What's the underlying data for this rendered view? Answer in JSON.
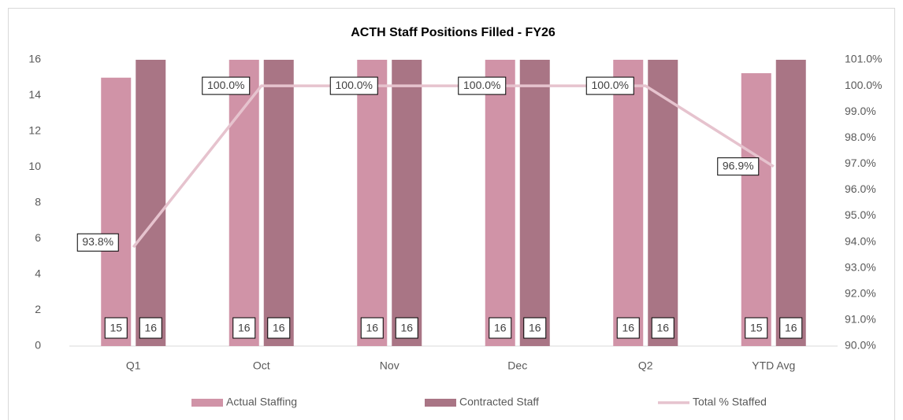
{
  "chart_data": {
    "type": "bar",
    "title": "ACTH Staff Positions Filled - FY26",
    "categories": [
      "Q1",
      "Oct",
      "Nov",
      "Dec",
      "Q2",
      "YTD Avg"
    ],
    "series": [
      {
        "name": "Actual Staffing",
        "type": "bar",
        "color": "#d093a7",
        "values": [
          15,
          16,
          16,
          16,
          16,
          15.25
        ],
        "value_labels": [
          "15",
          "16",
          "16",
          "16",
          "16",
          "15"
        ]
      },
      {
        "name": "Contracted Staff",
        "type": "bar",
        "color": "#a97585",
        "values": [
          16,
          16,
          16,
          16,
          16,
          16
        ]
      },
      {
        "name": "Total % Staffed",
        "type": "line",
        "axis": "y2",
        "color": "#e6c3ce",
        "values": [
          93.8,
          100,
          100,
          100,
          100,
          96.9
        ],
        "value_labels": [
          "93.8%",
          "100.0%",
          "100.0%",
          "100.0%",
          "100.0%",
          "96.9%"
        ]
      }
    ],
    "ylim": [
      0,
      16
    ],
    "yticks": [
      0,
      2,
      4,
      6,
      8,
      10,
      12,
      14,
      16
    ],
    "y2lim": [
      90,
      101
    ],
    "y2ticks": [
      {
        "value": 90,
        "label": "90.0%"
      },
      {
        "value": 91,
        "label": "91.0%"
      },
      {
        "value": 92,
        "label": "92.0%"
      },
      {
        "value": 93,
        "label": "93.0%"
      },
      {
        "value": 94,
        "label": "94.0%"
      },
      {
        "value": 95,
        "label": "95.0%"
      },
      {
        "value": 96,
        "label": "96.0%"
      },
      {
        "value": 97,
        "label": "97.0%"
      },
      {
        "value": 98,
        "label": "98.0%"
      },
      {
        "value": 99,
        "label": "99.0%"
      },
      {
        "value": 100,
        "label": "100.0%"
      },
      {
        "value": 101,
        "label": "101.0%"
      }
    ],
    "legend": "bottom",
    "grid": false
  }
}
